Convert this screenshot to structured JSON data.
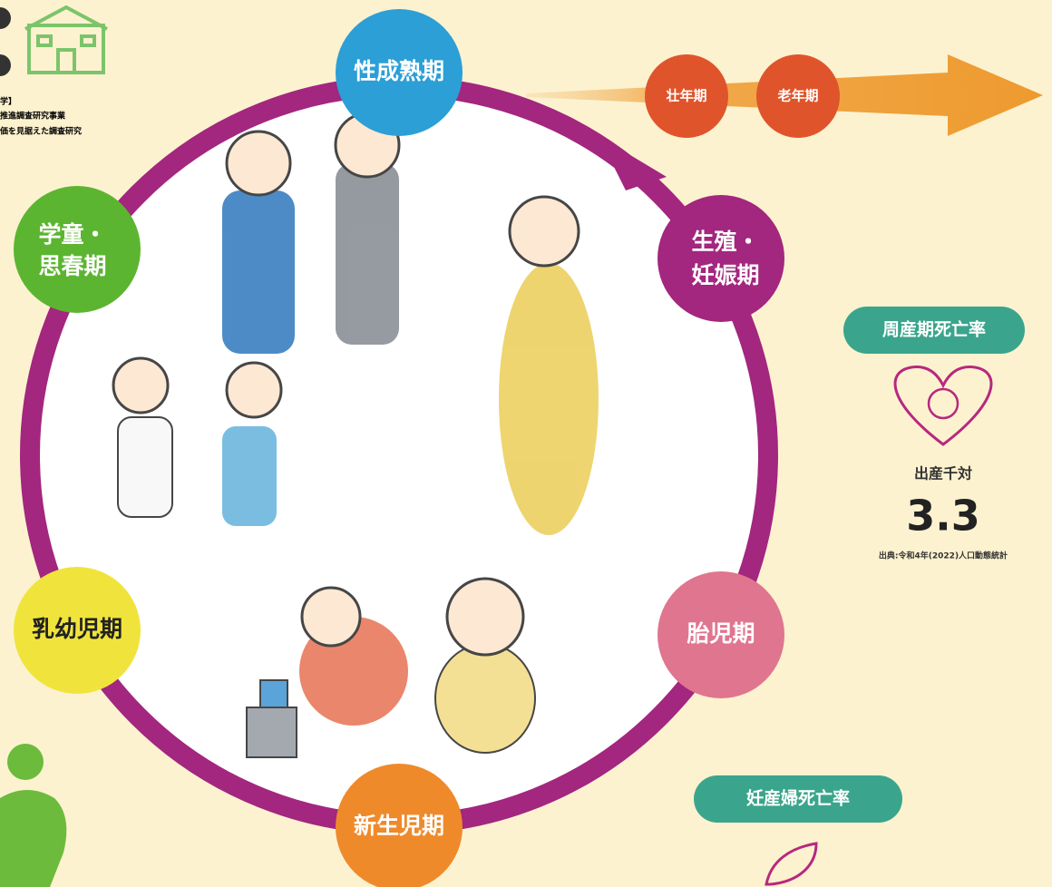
{
  "header": {
    "lines": [
      "学】",
      "推進調査研究事業",
      "価を見据えた調査研究"
    ]
  },
  "stages": [
    {
      "lines": [
        "性成熟期"
      ]
    },
    {
      "lines": [
        "学童・",
        "思春期"
      ]
    },
    {
      "lines": [
        "生殖・",
        "妊娠期"
      ]
    },
    {
      "lines": [
        "乳幼児期"
      ]
    },
    {
      "lines": [
        "胎児期"
      ]
    },
    {
      "lines": [
        "新生児期"
      ]
    }
  ],
  "later_stages": [
    "壮年期",
    "老年期"
  ],
  "perinatal": {
    "title": "周産期死亡率",
    "unit": "出産千対",
    "value": "3.3",
    "source": "出典:令和4年(2022)人口動態統計"
  },
  "maternal": {
    "title": "妊産婦死亡率"
  }
}
